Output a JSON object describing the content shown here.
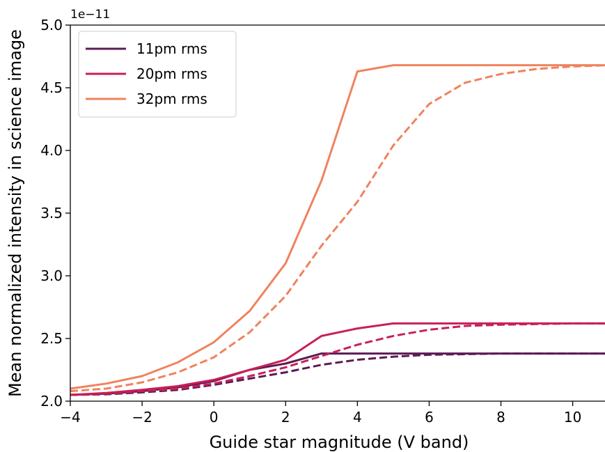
{
  "chart_data": {
    "type": "line",
    "xlabel": "Guide star magnitude (V band)",
    "ylabel": "Mean normalized intensity in science image",
    "y_offset_label": "1e−11",
    "xlim": [
      -4,
      10.9
    ],
    "ylim": [
      2.0,
      5.0
    ],
    "xticks": [
      -4,
      -2,
      0,
      2,
      4,
      6,
      8,
      10
    ],
    "xtick_labels": [
      "−4",
      "−2",
      "0",
      "2",
      "4",
      "6",
      "8",
      "10"
    ],
    "yticks": [
      2.0,
      2.5,
      3.0,
      3.5,
      4.0,
      4.5,
      5.0
    ],
    "ytick_labels": [
      "2.0",
      "2.5",
      "3.0",
      "3.5",
      "4.0",
      "4.5",
      "5.0"
    ],
    "y_scale_factor": "1e-11",
    "legend_position": "top-left",
    "series": [
      {
        "name": "11pm rms",
        "color": "#5c1b55",
        "style": "solid",
        "x": [
          -4,
          -3,
          -2,
          -1,
          0,
          1,
          2,
          3,
          4,
          5,
          6,
          7,
          8,
          9,
          10,
          11
        ],
        "y": [
          2.05,
          2.06,
          2.08,
          2.11,
          2.16,
          2.25,
          2.3,
          2.38,
          2.38,
          2.38,
          2.38,
          2.38,
          2.38,
          2.38,
          2.38,
          2.38
        ]
      },
      {
        "name": "",
        "color": "#5c1b55",
        "style": "dashed",
        "x": [
          -4,
          -3,
          -2,
          -1,
          0,
          1,
          2,
          3,
          4,
          5,
          6,
          7,
          8,
          9,
          10,
          11
        ],
        "y": [
          2.05,
          2.055,
          2.07,
          2.09,
          2.13,
          2.18,
          2.23,
          2.29,
          2.33,
          2.355,
          2.37,
          2.375,
          2.38,
          2.38,
          2.38,
          2.38
        ]
      },
      {
        "name": "20pm rms",
        "color": "#c81f56",
        "style": "solid",
        "x": [
          -4,
          -3,
          -2,
          -1,
          0,
          1,
          2,
          3,
          4,
          5,
          6,
          7,
          8,
          9,
          10,
          11
        ],
        "y": [
          2.05,
          2.065,
          2.09,
          2.12,
          2.17,
          2.25,
          2.33,
          2.52,
          2.58,
          2.62,
          2.62,
          2.62,
          2.62,
          2.62,
          2.62,
          2.62
        ]
      },
      {
        "name": "",
        "color": "#c81f56",
        "style": "dashed",
        "x": [
          -4,
          -3,
          -2,
          -1,
          0,
          1,
          2,
          3,
          4,
          5,
          6,
          7,
          8,
          9,
          10,
          11
        ],
        "y": [
          2.05,
          2.06,
          2.08,
          2.1,
          2.14,
          2.2,
          2.27,
          2.36,
          2.45,
          2.52,
          2.57,
          2.6,
          2.61,
          2.615,
          2.62,
          2.62
        ]
      },
      {
        "name": "32pm rms",
        "color": "#f0825d",
        "style": "solid",
        "x": [
          -4,
          -3,
          -2,
          -1,
          0,
          1,
          2,
          3,
          4,
          5,
          6,
          7,
          8,
          9,
          10,
          11
        ],
        "y": [
          2.1,
          2.14,
          2.2,
          2.31,
          2.47,
          2.72,
          3.1,
          3.76,
          4.63,
          4.68,
          4.68,
          4.68,
          4.68,
          4.68,
          4.68,
          4.68
        ]
      },
      {
        "name": "",
        "color": "#f0825d",
        "style": "dashed",
        "x": [
          -4,
          -3,
          -2,
          -1,
          0,
          1,
          2,
          3,
          4,
          5,
          6,
          7,
          8,
          9,
          10,
          11
        ],
        "y": [
          2.08,
          2.1,
          2.15,
          2.23,
          2.35,
          2.55,
          2.84,
          3.24,
          3.59,
          4.04,
          4.37,
          4.54,
          4.61,
          4.65,
          4.67,
          4.68
        ]
      }
    ]
  }
}
